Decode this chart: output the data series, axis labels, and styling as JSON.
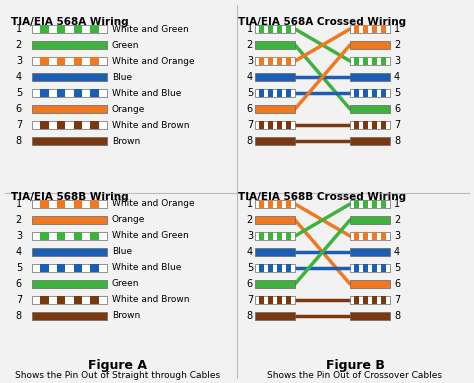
{
  "bg_color": "#f2f2f2",
  "title_fontsize": 7.5,
  "label_fontsize": 6.5,
  "pin_fontsize": 7,
  "fig_label_fontsize": 9,
  "fig_caption_fontsize": 6.5,
  "labels_568A": [
    "White and Green",
    "Green",
    "White and Orange",
    "Blue",
    "White and Blue",
    "Orange",
    "White and Brown",
    "Brown"
  ],
  "labels_568B": [
    "White and Orange",
    "Orange",
    "White and Green",
    "Blue",
    "White and Blue",
    "Green",
    "White and Brown",
    "Brown"
  ],
  "solid_colors": {
    "green": "#3db33d",
    "orange": "#f07820",
    "blue": "#1a5fb4",
    "brown": "#7b3810"
  },
  "stripe_colors": {
    "white_green": [
      "#ffffff",
      "#3db33d"
    ],
    "white_orange": [
      "#ffffff",
      "#f07820"
    ],
    "white_blue": [
      "#ffffff",
      "#1a5fb4"
    ],
    "white_brown": [
      "#ffffff",
      "#7b3810"
    ]
  },
  "colors_568A_keys": [
    "white_green",
    "green",
    "white_orange",
    "blue",
    "white_blue",
    "orange",
    "white_brown",
    "brown"
  ],
  "colors_568B_keys": [
    "white_orange",
    "orange",
    "white_green",
    "blue",
    "white_blue",
    "green",
    "white_brown",
    "brown"
  ],
  "crossed_568A_mapping": [
    3,
    6,
    1,
    4,
    5,
    2,
    7,
    8
  ],
  "crossed_568B_mapping": [
    3,
    6,
    1,
    4,
    5,
    2,
    7,
    8
  ],
  "divider_color": "#bbbbbb"
}
